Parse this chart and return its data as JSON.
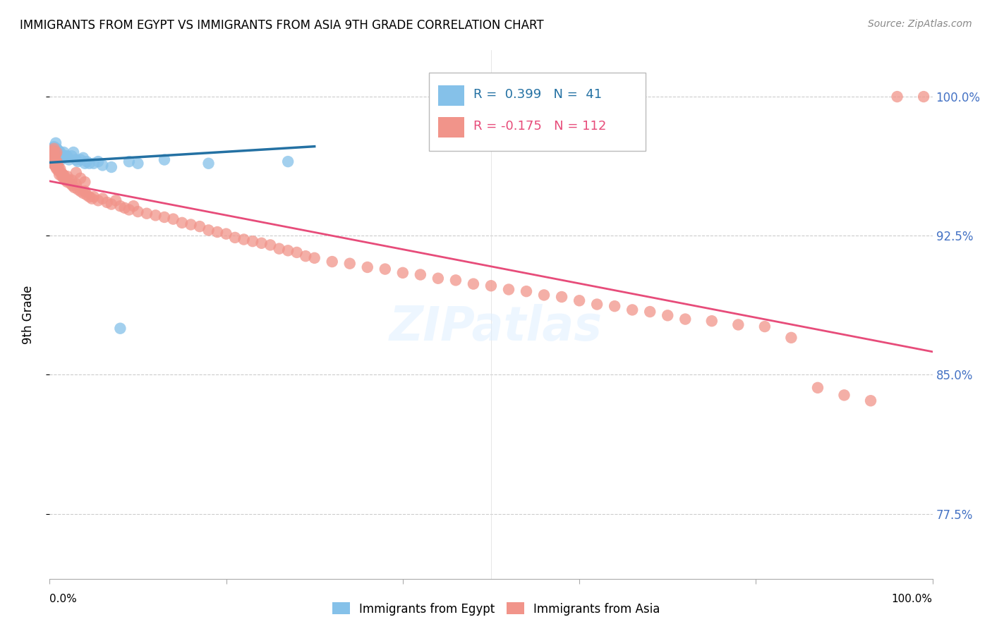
{
  "title": "IMMIGRANTS FROM EGYPT VS IMMIGRANTS FROM ASIA 9TH GRADE CORRELATION CHART",
  "source": "Source: ZipAtlas.com",
  "ylabel": "9th Grade",
  "xlim": [
    0.0,
    1.0
  ],
  "ylim": [
    0.74,
    1.025
  ],
  "yticks": [
    0.775,
    0.85,
    0.925,
    1.0
  ],
  "ytick_labels": [
    "77.5%",
    "85.0%",
    "92.5%",
    "100.0%"
  ],
  "blue_R": 0.399,
  "blue_N": 41,
  "pink_R": -0.175,
  "pink_N": 112,
  "blue_color": "#85C1E9",
  "pink_color": "#F1948A",
  "blue_line_color": "#2471A3",
  "pink_line_color": "#E74C7A",
  "blue_label": "Immigrants from Egypt",
  "pink_label": "Immigrants from Asia",
  "blue_scatter_x": [
    0.001,
    0.002,
    0.003,
    0.003,
    0.004,
    0.005,
    0.005,
    0.006,
    0.007,
    0.007,
    0.008,
    0.009,
    0.01,
    0.011,
    0.012,
    0.013,
    0.015,
    0.016,
    0.018,
    0.02,
    0.022,
    0.025,
    0.027,
    0.03,
    0.032,
    0.035,
    0.038,
    0.04,
    0.042,
    0.045,
    0.05,
    0.055,
    0.06,
    0.07,
    0.08,
    0.09,
    0.1,
    0.13,
    0.18,
    0.27,
    0.62
  ],
  "blue_scatter_y": [
    0.965,
    0.97,
    0.968,
    0.972,
    0.97,
    0.973,
    0.969,
    0.972,
    0.97,
    0.975,
    0.972,
    0.969,
    0.971,
    0.968,
    0.97,
    0.966,
    0.968,
    0.97,
    0.968,
    0.968,
    0.966,
    0.968,
    0.97,
    0.966,
    0.965,
    0.966,
    0.967,
    0.964,
    0.965,
    0.964,
    0.964,
    0.965,
    0.963,
    0.962,
    0.875,
    0.965,
    0.964,
    0.966,
    0.964,
    0.965,
    1.0
  ],
  "pink_scatter_x": [
    0.001,
    0.002,
    0.002,
    0.003,
    0.003,
    0.004,
    0.004,
    0.005,
    0.005,
    0.006,
    0.006,
    0.007,
    0.007,
    0.008,
    0.008,
    0.009,
    0.01,
    0.01,
    0.011,
    0.012,
    0.013,
    0.014,
    0.015,
    0.016,
    0.017,
    0.018,
    0.02,
    0.022,
    0.024,
    0.026,
    0.028,
    0.03,
    0.032,
    0.035,
    0.038,
    0.04,
    0.042,
    0.045,
    0.048,
    0.05,
    0.055,
    0.06,
    0.065,
    0.07,
    0.075,
    0.08,
    0.085,
    0.09,
    0.095,
    0.1,
    0.11,
    0.12,
    0.13,
    0.14,
    0.15,
    0.16,
    0.17,
    0.18,
    0.19,
    0.2,
    0.21,
    0.22,
    0.23,
    0.24,
    0.25,
    0.26,
    0.27,
    0.28,
    0.29,
    0.3,
    0.32,
    0.34,
    0.36,
    0.38,
    0.4,
    0.42,
    0.44,
    0.46,
    0.48,
    0.5,
    0.52,
    0.54,
    0.56,
    0.58,
    0.6,
    0.62,
    0.64,
    0.66,
    0.68,
    0.7,
    0.72,
    0.75,
    0.78,
    0.81,
    0.84,
    0.87,
    0.9,
    0.93,
    0.96,
    0.99,
    0.003,
    0.004,
    0.005,
    0.006,
    0.007,
    0.008,
    0.015,
    0.02,
    0.025,
    0.03,
    0.035,
    0.04
  ],
  "pink_scatter_y": [
    0.968,
    0.965,
    0.97,
    0.966,
    0.964,
    0.97,
    0.965,
    0.964,
    0.968,
    0.963,
    0.965,
    0.964,
    0.962,
    0.965,
    0.961,
    0.964,
    0.962,
    0.96,
    0.958,
    0.961,
    0.959,
    0.957,
    0.958,
    0.956,
    0.957,
    0.955,
    0.954,
    0.955,
    0.953,
    0.952,
    0.951,
    0.953,
    0.95,
    0.949,
    0.948,
    0.949,
    0.947,
    0.946,
    0.945,
    0.946,
    0.944,
    0.945,
    0.943,
    0.942,
    0.944,
    0.941,
    0.94,
    0.939,
    0.941,
    0.938,
    0.937,
    0.936,
    0.935,
    0.934,
    0.932,
    0.931,
    0.93,
    0.928,
    0.927,
    0.926,
    0.924,
    0.923,
    0.922,
    0.921,
    0.92,
    0.918,
    0.917,
    0.916,
    0.914,
    0.913,
    0.911,
    0.91,
    0.908,
    0.907,
    0.905,
    0.904,
    0.902,
    0.901,
    0.899,
    0.898,
    0.896,
    0.895,
    0.893,
    0.892,
    0.89,
    0.888,
    0.887,
    0.885,
    0.884,
    0.882,
    0.88,
    0.879,
    0.877,
    0.876,
    0.87,
    0.843,
    0.839,
    0.836,
    1.0,
    1.0,
    0.97,
    0.971,
    0.972,
    0.968,
    0.969,
    0.97,
    0.958,
    0.957,
    0.955,
    0.959,
    0.956,
    0.954
  ]
}
